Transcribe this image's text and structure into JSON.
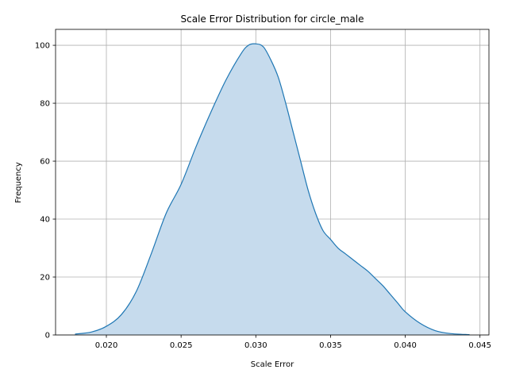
{
  "chart_data": {
    "type": "area",
    "title": "Scale Error Distribution for circle_male",
    "xlabel": "Scale Error",
    "ylabel": "Frequency",
    "xlim": [
      0.0166,
      0.0456
    ],
    "ylim": [
      0,
      105.5
    ],
    "xticks": [
      0.02,
      0.025,
      0.03,
      0.035,
      0.04,
      0.045
    ],
    "xtick_labels": [
      "0.020",
      "0.025",
      "0.030",
      "0.035",
      "0.040",
      "0.045"
    ],
    "yticks": [
      0,
      20,
      40,
      60,
      80,
      100
    ],
    "ytick_labels": [
      "0",
      "20",
      "40",
      "60",
      "80",
      "100"
    ],
    "grid": true,
    "legend": false,
    "series": [
      {
        "color": "#1f77b4",
        "fill_color": "#c6dbed",
        "x": [
          0.0179,
          0.019,
          0.02,
          0.021,
          0.022,
          0.023,
          0.024,
          0.025,
          0.026,
          0.027,
          0.028,
          0.029,
          0.0295,
          0.03,
          0.0305,
          0.031,
          0.0315,
          0.032,
          0.0325,
          0.033,
          0.0335,
          0.034,
          0.0345,
          0.035,
          0.0355,
          0.036,
          0.0365,
          0.037,
          0.0375,
          0.038,
          0.0385,
          0.039,
          0.0395,
          0.04,
          0.041,
          0.042,
          0.043,
          0.0443
        ],
        "y": [
          0.3,
          1.0,
          3.0,
          7.0,
          15.0,
          28.0,
          42.0,
          52.0,
          65.0,
          77.0,
          88.0,
          97.0,
          100.0,
          100.5,
          99.5,
          95.0,
          89.0,
          80.0,
          70.0,
          60.0,
          50.0,
          42.0,
          36.0,
          33.0,
          30.0,
          28.0,
          26.0,
          24.0,
          22.0,
          19.5,
          17.0,
          14.0,
          11.0,
          8.0,
          4.0,
          1.5,
          0.5,
          0.1
        ]
      }
    ]
  }
}
